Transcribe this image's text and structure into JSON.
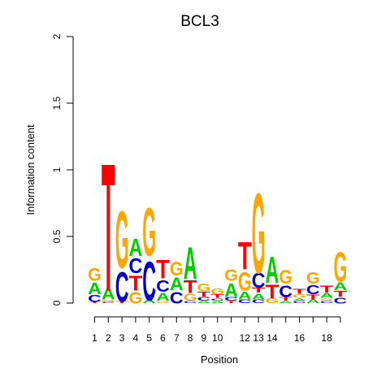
{
  "chart_data": {
    "type": "sequence-logo",
    "title": "BCL3",
    "xlabel": "Position",
    "ylabel": "Information content",
    "ylim": [
      0,
      2
    ],
    "y_ticks": [
      "0",
      "0.5",
      "1",
      "1.5",
      "2"
    ],
    "y_tick_values": [
      0,
      0.5,
      1,
      1.5,
      2
    ],
    "x_tick_labels": [
      "1",
      "2",
      "3",
      "4",
      "5",
      "6",
      "7",
      "8",
      "9",
      "10",
      "12",
      "13",
      "14",
      "16",
      "18"
    ],
    "x_tick_positions": [
      1,
      2,
      3,
      4,
      5,
      6,
      7,
      8,
      9,
      10,
      12,
      13,
      14,
      16,
      18
    ],
    "n_positions": 19,
    "colors": {
      "A": "#00cc00",
      "C": "#0000cc",
      "G": "#ffa500",
      "T": "#ff0000"
    },
    "positions": [
      {
        "pos": 1,
        "letters": [
          {
            "l": "T",
            "h": 0.01
          },
          {
            "l": "C",
            "h": 0.06
          },
          {
            "l": "A",
            "h": 0.1
          },
          {
            "l": "G",
            "h": 0.11
          }
        ]
      },
      {
        "pos": 2,
        "letters": [
          {
            "l": "C",
            "h": 0.01
          },
          {
            "l": "G",
            "h": 0.02
          },
          {
            "l": "A",
            "h": 0.1
          },
          {
            "l": "T",
            "h": 1.12
          }
        ]
      },
      {
        "pos": 3,
        "letters": [
          {
            "l": "T",
            "h": 0.02
          },
          {
            "l": "C",
            "h": 0.26
          },
          {
            "l": "G",
            "h": 0.5
          }
        ]
      },
      {
        "pos": 4,
        "letters": [
          {
            "l": "G",
            "h": 0.1
          },
          {
            "l": "T",
            "h": 0.13
          },
          {
            "l": "C",
            "h": 0.13
          },
          {
            "l": "A",
            "h": 0.15
          }
        ]
      },
      {
        "pos": 5,
        "letters": [
          {
            "l": "A",
            "h": 0.03
          },
          {
            "l": "C",
            "h": 0.34
          },
          {
            "l": "G",
            "h": 0.42
          }
        ]
      },
      {
        "pos": 6,
        "letters": [
          {
            "l": "G",
            "h": 0.02
          },
          {
            "l": "A",
            "h": 0.07
          },
          {
            "l": "C",
            "h": 0.1
          },
          {
            "l": "T",
            "h": 0.16
          }
        ]
      },
      {
        "pos": 7,
        "letters": [
          {
            "l": "C",
            "h": 0.1
          },
          {
            "l": "A",
            "h": 0.11
          },
          {
            "l": "G",
            "h": 0.12
          }
        ]
      },
      {
        "pos": 8,
        "letters": [
          {
            "l": "C",
            "h": 0.02
          },
          {
            "l": "G",
            "h": 0.06
          },
          {
            "l": "T",
            "h": 0.11
          },
          {
            "l": "A",
            "h": 0.28
          }
        ]
      },
      {
        "pos": 9,
        "letters": [
          {
            "l": "A",
            "h": 0.02
          },
          {
            "l": "C",
            "h": 0.03
          },
          {
            "l": "T",
            "h": 0.04
          },
          {
            "l": "G",
            "h": 0.07
          }
        ]
      },
      {
        "pos": 10,
        "letters": [
          {
            "l": "A",
            "h": 0.02
          },
          {
            "l": "C",
            "h": 0.02
          },
          {
            "l": "T",
            "h": 0.03
          },
          {
            "l": "G",
            "h": 0.05
          }
        ]
      },
      {
        "pos": 11,
        "letters": [
          {
            "l": "T",
            "h": 0.02
          },
          {
            "l": "C",
            "h": 0.03
          },
          {
            "l": "A",
            "h": 0.12
          },
          {
            "l": "G",
            "h": 0.1
          }
        ]
      },
      {
        "pos": 12,
        "letters": [
          {
            "l": "C",
            "h": 0.03
          },
          {
            "l": "A",
            "h": 0.07
          },
          {
            "l": "G",
            "h": 0.16
          },
          {
            "l": "T",
            "h": 0.24
          }
        ]
      },
      {
        "pos": 13,
        "letters": [
          {
            "l": "C",
            "h": 0.03
          },
          {
            "l": "A",
            "h": 0.05
          },
          {
            "l": "T",
            "h": 0.04
          },
          {
            "l": "C",
            "h": 0.13
          },
          {
            "l": "G",
            "h": 0.7
          }
        ]
      },
      {
        "pos": 14,
        "letters": [
          {
            "l": "G",
            "h": 0.04
          },
          {
            "l": "T",
            "h": 0.12
          },
          {
            "l": "A",
            "h": 0.23
          }
        ]
      },
      {
        "pos": 15,
        "letters": [
          {
            "l": "A",
            "h": 0.02
          },
          {
            "l": "T",
            "h": 0.03
          },
          {
            "l": "C",
            "h": 0.1
          },
          {
            "l": "G",
            "h": 0.12
          }
        ]
      },
      {
        "pos": 16,
        "letters": [
          {
            "l": "C",
            "h": 0.02
          },
          {
            "l": "A",
            "h": 0.02
          },
          {
            "l": "G",
            "h": 0.03
          },
          {
            "l": "T",
            "h": 0.04
          }
        ]
      },
      {
        "pos": 17,
        "letters": [
          {
            "l": "A",
            "h": 0.03
          },
          {
            "l": "T",
            "h": 0.04
          },
          {
            "l": "C",
            "h": 0.08
          },
          {
            "l": "G",
            "h": 0.1
          }
        ]
      },
      {
        "pos": 18,
        "letters": [
          {
            "l": "C",
            "h": 0.02
          },
          {
            "l": "G",
            "h": 0.02
          },
          {
            "l": "A",
            "h": 0.04
          },
          {
            "l": "T",
            "h": 0.06
          }
        ]
      },
      {
        "pos": 19,
        "letters": [
          {
            "l": "C",
            "h": 0.05
          },
          {
            "l": "T",
            "h": 0.05
          },
          {
            "l": "A",
            "h": 0.07
          },
          {
            "l": "G",
            "h": 0.26
          }
        ]
      }
    ]
  }
}
